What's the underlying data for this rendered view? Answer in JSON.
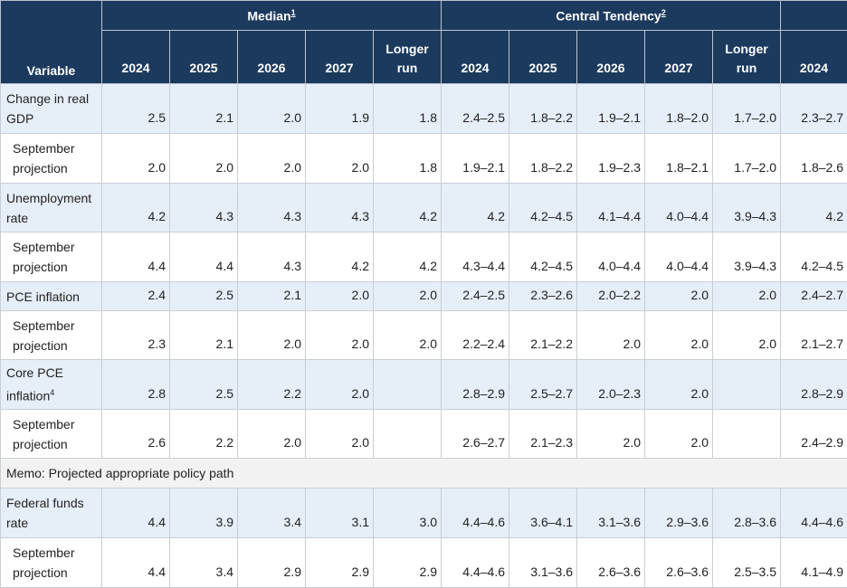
{
  "header": {
    "variable": "Variable",
    "groups": [
      {
        "label": "Median",
        "note": "1"
      },
      {
        "label": "Central Tendency",
        "note": "2"
      }
    ],
    "columns": [
      "2024",
      "2025",
      "2026",
      "2027",
      "Longer run",
      "2024",
      "2025",
      "2026",
      "2027",
      "Longer run",
      "2024"
    ]
  },
  "rows": [
    {
      "label": "Change in real GDP",
      "cells": [
        "2.5",
        "2.1",
        "2.0",
        "1.9",
        "1.8",
        "2.4–2.5",
        "1.8–2.2",
        "1.9–2.1",
        "1.8–2.0",
        "1.7–2.0",
        "2.3–2.7"
      ]
    },
    {
      "label": "September projection",
      "sub": true,
      "cells": [
        "2.0",
        "2.0",
        "2.0",
        "2.0",
        "1.8",
        "1.9–2.1",
        "1.8–2.2",
        "1.9–2.3",
        "1.8–2.1",
        "1.7–2.0",
        "1.8–2.6"
      ]
    },
    {
      "label": "Unemployment rate",
      "cells": [
        "4.2",
        "4.3",
        "4.3",
        "4.3",
        "4.2",
        "4.2",
        "4.2–4.5",
        "4.1–4.4",
        "4.0–4.4",
        "3.9–4.3",
        "4.2"
      ]
    },
    {
      "label": "September projection",
      "sub": true,
      "cells": [
        "4.4",
        "4.4",
        "4.3",
        "4.2",
        "4.2",
        "4.3–4.4",
        "4.2–4.5",
        "4.0–4.4",
        "4.0–4.4",
        "3.9–4.3",
        "4.2–4.5"
      ]
    },
    {
      "label": "PCE inflation",
      "cells": [
        "2.4",
        "2.5",
        "2.1",
        "2.0",
        "2.0",
        "2.4–2.5",
        "2.3–2.6",
        "2.0–2.2",
        "2.0",
        "2.0",
        "2.4–2.7"
      ]
    },
    {
      "label": "September projection",
      "sub": true,
      "cells": [
        "2.3",
        "2.1",
        "2.0",
        "2.0",
        "2.0",
        "2.2–2.4",
        "2.1–2.2",
        "2.0",
        "2.0",
        "2.0",
        "2.1–2.7"
      ]
    },
    {
      "label": "Core PCE inflation",
      "note": "4",
      "cells": [
        "2.8",
        "2.5",
        "2.2",
        "2.0",
        null,
        "2.8–2.9",
        "2.5–2.7",
        "2.0–2.3",
        "2.0",
        null,
        "2.8–2.9"
      ]
    },
    {
      "label": "September projection",
      "sub": true,
      "cells": [
        "2.6",
        "2.2",
        "2.0",
        "2.0",
        null,
        "2.6–2.7",
        "2.1–2.3",
        "2.0",
        "2.0",
        null,
        "2.4–2.9"
      ]
    },
    {
      "memo": "Memo: Projected appropriate policy path"
    },
    {
      "label": "Federal funds rate",
      "cells": [
        "4.4",
        "3.9",
        "3.4",
        "3.1",
        "3.0",
        "4.4–4.6",
        "3.6–4.1",
        "3.1–3.6",
        "2.9–3.6",
        "2.8–3.6",
        "4.4–4.6"
      ]
    },
    {
      "label": "September projection",
      "sub": true,
      "cells": [
        "4.4",
        "3.4",
        "2.9",
        "2.9",
        "2.9",
        "4.4–4.6",
        "3.1–3.6",
        "2.6–3.6",
        "2.6–3.6",
        "2.5–3.5",
        "4.1–4.9"
      ]
    }
  ]
}
